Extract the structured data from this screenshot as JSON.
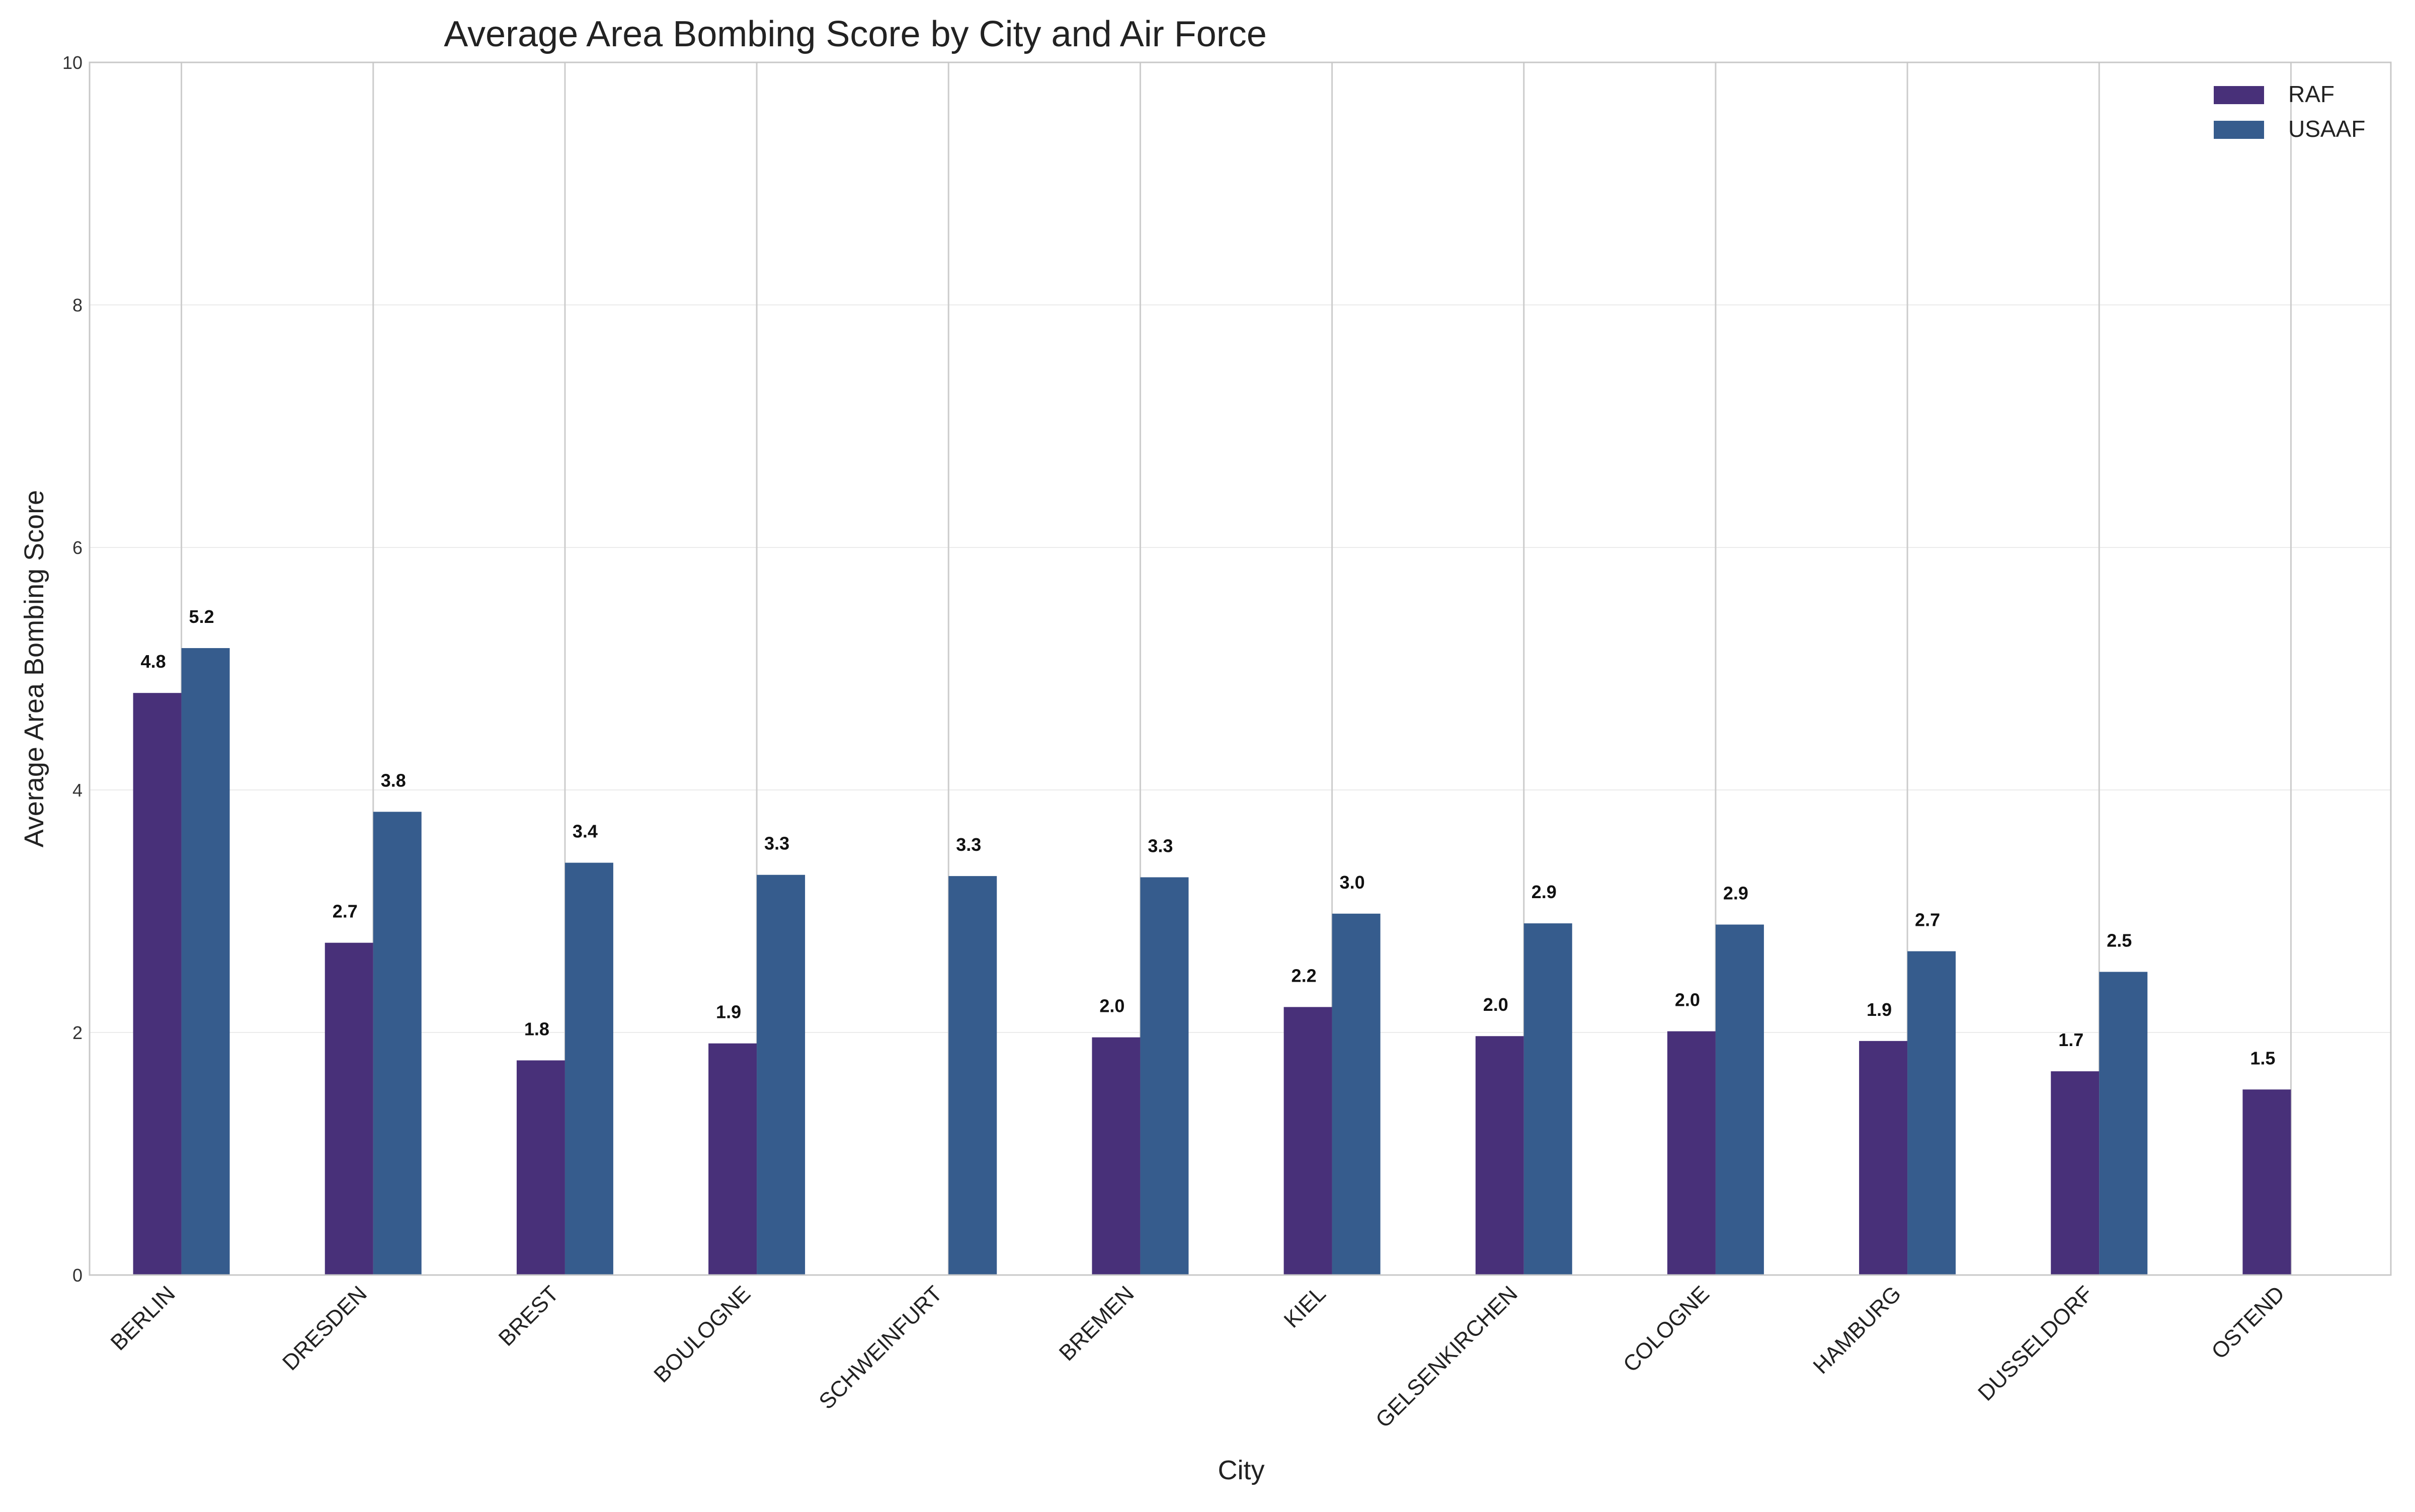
{
  "chart_data": {
    "type": "bar",
    "title": "Average Area Bombing Score by City and Air Force",
    "xlabel": "City",
    "ylabel": "Average Area Bombing Score",
    "ylim": [
      0,
      10
    ],
    "yticks": [
      0,
      2,
      4,
      6,
      8,
      10
    ],
    "grid": true,
    "legend_position": "top-right",
    "categories": [
      "BERLIN",
      "DRESDEN",
      "BREST",
      "BOULOGNE",
      "SCHWEINFURT",
      "BREMEN",
      "KIEL",
      "GELSENKIRCHEN",
      "COLOGNE",
      "HAMBURG",
      "DUSSELDORF",
      "OSTEND"
    ],
    "series": [
      {
        "name": "RAF",
        "color": "#483079",
        "values": [
          4.8,
          2.74,
          1.77,
          1.91,
          null,
          1.96,
          2.21,
          1.97,
          2.01,
          1.93,
          1.68,
          1.53
        ],
        "labels": [
          "4.8",
          "2.7",
          "1.8",
          "1.9",
          null,
          "2.0",
          "2.2",
          "2.0",
          "2.0",
          "1.9",
          "1.7",
          "1.5"
        ]
      },
      {
        "name": "USAAF",
        "color": "#365c8d",
        "values": [
          5.17,
          3.82,
          3.4,
          3.3,
          3.29,
          3.28,
          2.98,
          2.9,
          2.89,
          2.67,
          2.5,
          null
        ],
        "labels": [
          "5.2",
          "3.8",
          "3.4",
          "3.3",
          "3.3",
          "3.3",
          "3.0",
          "2.9",
          "2.9",
          "2.7",
          "2.5",
          null
        ]
      }
    ]
  }
}
